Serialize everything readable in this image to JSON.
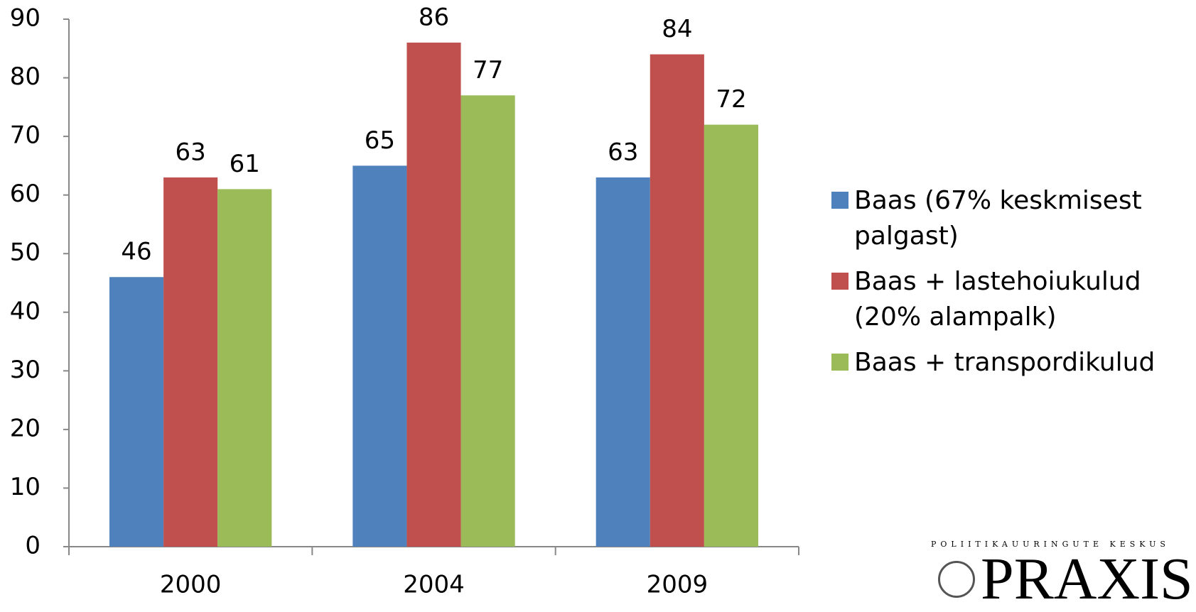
{
  "chart_data": {
    "type": "bar",
    "categories": [
      "2000",
      "2004",
      "2009"
    ],
    "series": [
      {
        "name": "Baas (67% keskmisest palgast)",
        "color": "#4f81bd",
        "values": [
          46,
          65,
          63
        ]
      },
      {
        "name": "Baas + lastehoiukulud (20% alampalk)",
        "color": "#c0504d",
        "values": [
          63,
          86,
          84
        ]
      },
      {
        "name": "Baas + transpordikulud",
        "color": "#9bbb59",
        "values": [
          61,
          77,
          72
        ]
      }
    ],
    "ylim": [
      0,
      90
    ],
    "yticks": [
      0,
      10,
      20,
      30,
      40,
      50,
      60,
      70,
      80,
      90
    ],
    "grid": false,
    "legend": "right",
    "data_labels": true
  },
  "logo": {
    "subtitle": "POLIITIKAUURINGUTE KESKUS",
    "name": "PRAXIS"
  }
}
